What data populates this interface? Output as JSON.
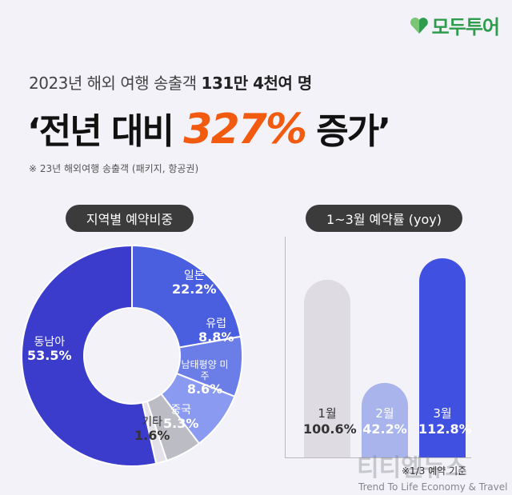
{
  "brand": {
    "name": "모두투어",
    "color": "#2d9d4c"
  },
  "header": {
    "subtitle_prefix": "2023년 해외 여행 송출객",
    "subtitle_bold": "131만 4천여 명",
    "headline_pre": "‘전년 대비",
    "headline_value": "327%",
    "headline_post": "증가’",
    "note": "※ 23년 해외여행 송출객 (패키지, 항공권)"
  },
  "chart_data": [
    {
      "type": "pie",
      "title": "지역별 예약비중",
      "slices": [
        {
          "label": "일본",
          "value": 22.2,
          "display": "22.2%",
          "color": "#4a5fe0"
        },
        {
          "label": "유럽",
          "value": 8.8,
          "display": "8.8%",
          "color": "#6b7ee8"
        },
        {
          "label": "남태평양 미주",
          "value": 8.6,
          "display": "8.6%",
          "color": "#8a9af0"
        },
        {
          "label": "중국",
          "value": 5.3,
          "display": "5.3%",
          "color": "#bcbcc4"
        },
        {
          "label": "기타",
          "value": 1.6,
          "display": "1.6%",
          "color": "#e4e2e8"
        },
        {
          "label": "동남아",
          "value": 53.5,
          "display": "53.5%",
          "color": "#3c3ccc"
        }
      ]
    },
    {
      "type": "bar",
      "title": "1~3월 예약률 (yoy)",
      "categories": [
        "1월",
        "2월",
        "3월"
      ],
      "values": [
        100.6,
        42.2,
        112.8
      ],
      "display": [
        "100.6%",
        "42.2%",
        "112.8%"
      ],
      "colors": [
        "#dedbe2",
        "#a9b3ec",
        "#4050e0"
      ],
      "footnote": "※1/3 예약 기준"
    }
  ],
  "watermark": {
    "main": "티티엘뉴스",
    "sub": "Trend To Life Economy & Travel"
  }
}
